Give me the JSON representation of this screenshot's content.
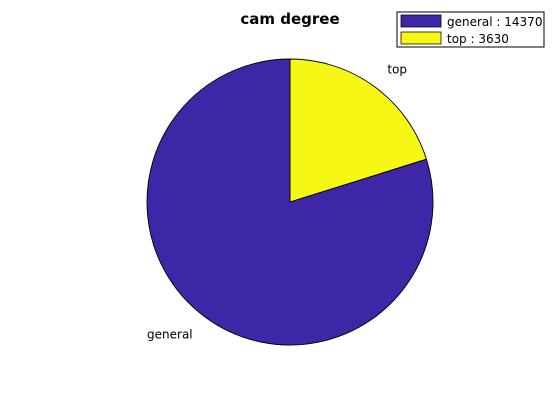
{
  "chart_data": {
    "type": "pie",
    "title": "cam degree",
    "slices": [
      {
        "label": "general",
        "value": 14370,
        "legend": "general : 14370",
        "color": "#3d27a6"
      },
      {
        "label": "top",
        "value": 3630,
        "legend": "top : 3630",
        "color": "#f7f716"
      }
    ],
    "legend_position": "top-right"
  }
}
